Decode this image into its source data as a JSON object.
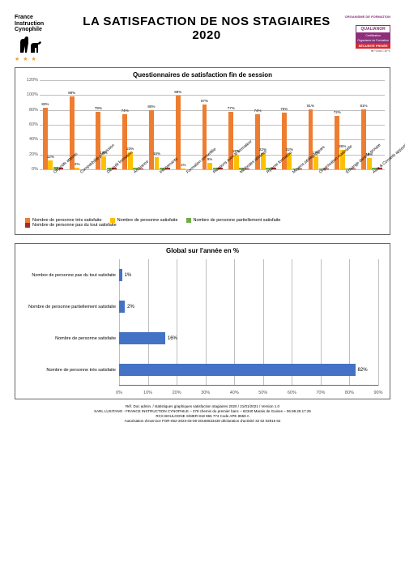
{
  "header": {
    "org_tag": "ORGANISME DE FORMATION",
    "brand_lines": [
      "France",
      "Instruction",
      "Cynophile"
    ],
    "title_line1": "LA SATISFACTION DE NOS STAGIAIRES",
    "title_line2": "2020",
    "qualianor_top": "QUALIANOR",
    "qualianor_mid1": "Certification",
    "qualianor_mid2": "Organisme de Formation",
    "qualianor_bot": "SÉCURITÉ PRIVÉE",
    "qualianor_note": "■ Portail CNPS"
  },
  "colors": {
    "series": [
      "#ed7d31",
      "#ffc000",
      "#70ad47",
      "#a52a2a"
    ],
    "bar2": "#4472c4",
    "grid": "#bfbfbf",
    "title_color": "#000000",
    "background": "#ffffff"
  },
  "chart1": {
    "title": "Questionnaires de satisfaction fin de session",
    "ylim": [
      0,
      120
    ],
    "ytick_step": 20,
    "categories": [
      "Objectifs atteints",
      "Compatibilité profession",
      "Déroulé formation",
      "Ambiance",
      "Intervenants",
      "Formation conseillée",
      "Relations avec le formateur",
      "Méthodes utilisées",
      "Rythme formation",
      "Moyens pédagogiques",
      "Organisation matérielle",
      "Echange dans le groupe",
      "Aide & Conseils apportés"
    ],
    "series": [
      {
        "label": "Nombre de personne très satisfaite",
        "values": [
          83,
          98,
          78,
          74,
          80,
          99,
          87,
          77,
          74,
          76,
          81,
          72,
          81
        ]
      },
      {
        "label": "Nombre de personne satisfaite",
        "values": [
          12,
          2,
          18,
          23,
          16,
          1,
          9,
          20,
          22,
          22,
          17,
          26,
          15
        ]
      },
      {
        "label": "Nombre de personne partiellement satisfaite",
        "values": [
          3,
          0,
          2,
          2,
          2,
          0,
          2,
          2,
          2,
          1,
          1,
          1,
          2
        ]
      },
      {
        "label": "Nombre de personne pas du tout satisfaite",
        "values": [
          2,
          0,
          2,
          1,
          2,
          0,
          2,
          1,
          2,
          1,
          1,
          1,
          2
        ]
      }
    ],
    "show_labels": [
      [
        0,
        1
      ],
      [
        0,
        1
      ],
      [
        0,
        1
      ],
      [
        0,
        1
      ],
      [
        0,
        1
      ],
      [
        0,
        1
      ],
      [
        0,
        1
      ],
      [
        0,
        1
      ],
      [
        0,
        1
      ],
      [
        0,
        1
      ],
      [
        0,
        1
      ],
      [
        0,
        1
      ],
      [
        0,
        1
      ]
    ]
  },
  "chart2": {
    "title": "Global sur l'année en %",
    "xlim": [
      0,
      90
    ],
    "xtick_step": 10,
    "rows": [
      {
        "label": "Nombre de personne pas du tout satisfaite",
        "value": 1
      },
      {
        "label": "Nombre de personne partiellement satisfaite",
        "value": 2
      },
      {
        "label": "Nombre de personne satisfaite",
        "value": 16
      },
      {
        "label": "Nombre de personne très satisfaite",
        "value": 82
      }
    ]
  },
  "footer": {
    "l1": "Réf. Doc admin. / statistiques graphiques satisfaction stagiaires 2020 / 21/01/2021 / Version 1.0",
    "l2": "SARL LUSITANO - FRANCE INSTRUCTION CYNOPHILE – 279 chemin du premier banc – 62340 Marais de Guines – 06.98.29.17.25",
    "l3": "RCS BOULOGNE S/MER 818 965 774 Code APE 8559 A",
    "l4": "Autorisation d'exercice FOR-062-2023-03-09-20180633430 déclaration d'activité 32 62 02815 62"
  }
}
